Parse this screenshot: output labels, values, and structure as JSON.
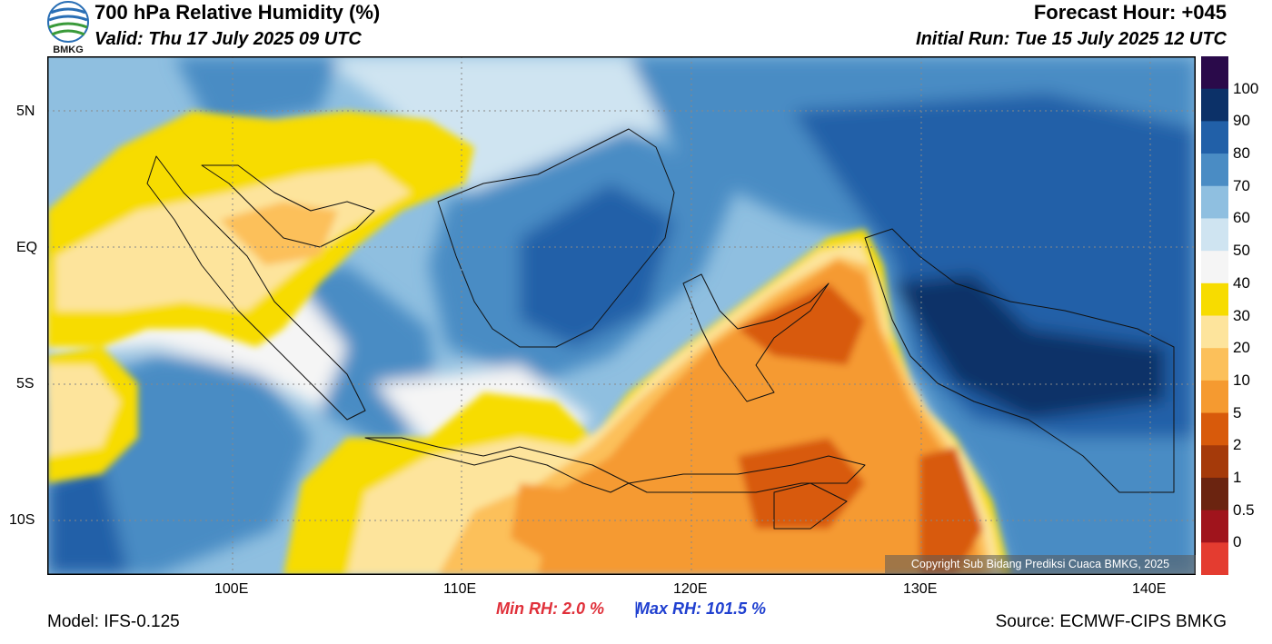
{
  "header": {
    "title": "700 hPa Relative Humidity (%)",
    "valid": "Valid: Thu 17 July 2025 09 UTC",
    "forecast_hour": "Forecast Hour: +045",
    "initial_run": "Initial Run: Tue 15 July 2025 12 UTC",
    "logo_text": "BMKG"
  },
  "axes": {
    "lat_labels": [
      "5N",
      "EQ",
      "5S",
      "10S"
    ],
    "lon_labels": [
      "100E",
      "110E",
      "120E",
      "130E",
      "140E"
    ]
  },
  "colorbar": {
    "levels": [
      "100",
      "90",
      "80",
      "70",
      "60",
      "50",
      "40",
      "30",
      "20",
      "10",
      "5",
      "2",
      "1",
      "0.5",
      "0"
    ],
    "colors": [
      "#2a0a4a",
      "#0c3168",
      "#2160a8",
      "#4a8cc4",
      "#8fbfe0",
      "#cfe4f1",
      "#f5f5f5",
      "#f7dc00",
      "#fde49c",
      "#fcc05a",
      "#f59a30",
      "#d85a0b",
      "#a53a0a",
      "#6b2410",
      "#a0141c",
      "#e43c30"
    ]
  },
  "footer": {
    "model": "Model: IFS-0.125",
    "min_rh": "Min RH:   2.0 %",
    "separator": "|",
    "max_rh": "Max RH: 101.5 %",
    "source": "Source: ECMWF-CIPS BMKG",
    "copyright": "Copyright Sub Bidang Prediksi Cuaca BMKG, 2025"
  }
}
